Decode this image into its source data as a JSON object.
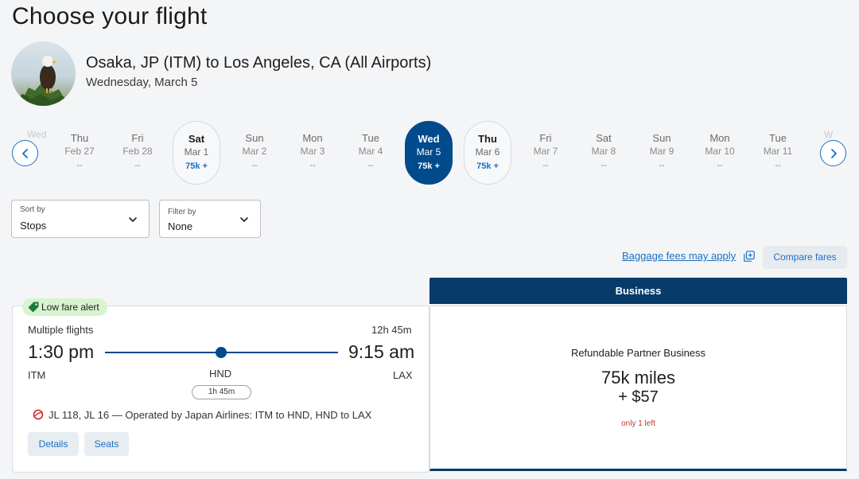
{
  "page": {
    "title": "Choose your flight"
  },
  "trip": {
    "route": "Osaka, JP (ITM) to Los Angeles, CA (All Airports)",
    "date": "Wednesday, March 5"
  },
  "date_strip": {
    "days": [
      {
        "dow": "Thu",
        "date": "Feb 27",
        "price": "--",
        "state": "unavailable"
      },
      {
        "dow": "Fri",
        "date": "Feb 28",
        "price": "--",
        "state": "unavailable"
      },
      {
        "dow": "Sat",
        "date": "Mar 1",
        "price": "75k +",
        "state": "available"
      },
      {
        "dow": "Sun",
        "date": "Mar 2",
        "price": "--",
        "state": "unavailable"
      },
      {
        "dow": "Mon",
        "date": "Mar 3",
        "price": "--",
        "state": "unavailable"
      },
      {
        "dow": "Tue",
        "date": "Mar 4",
        "price": "--",
        "state": "unavailable"
      },
      {
        "dow": "Wed",
        "date": "Mar 5",
        "price": "75k +",
        "state": "selected"
      },
      {
        "dow": "Thu",
        "date": "Mar 6",
        "price": "75k +",
        "state": "available"
      },
      {
        "dow": "Fri",
        "date": "Mar 7",
        "price": "--",
        "state": "unavailable"
      },
      {
        "dow": "Sat",
        "date": "Mar 8",
        "price": "--",
        "state": "unavailable"
      },
      {
        "dow": "Sun",
        "date": "Mar 9",
        "price": "--",
        "state": "unavailable"
      },
      {
        "dow": "Mon",
        "date": "Mar 10",
        "price": "--",
        "state": "unavailable"
      },
      {
        "dow": "Tue",
        "date": "Mar 11",
        "price": "--",
        "state": "unavailable"
      }
    ],
    "prev_icon": "chevron-left-icon",
    "next_icon": "chevron-right-icon"
  },
  "controls": {
    "sort_label": "Sort by",
    "sort_value": "Stops",
    "filter_label": "Filter by",
    "filter_value": "None",
    "baggage_link": "Baggage fees may apply",
    "compare_button": "Compare fares"
  },
  "fare_column": {
    "header": "Business"
  },
  "flight": {
    "badge": "Low fare alert",
    "type": "Multiple flights",
    "duration": "12h 45m",
    "departure_time": "1:30 pm",
    "arrival_time": "9:15 am",
    "origin": "ITM",
    "stop": "HND",
    "destination": "LAX",
    "layover": "1h 45m",
    "operated_by": "JL 118, JL 16 — Operated by Japan Airlines: ITM to HND, HND to LAX",
    "details_button": "Details",
    "seats_button": "Seats"
  },
  "fare": {
    "class": "Refundable Partner Business",
    "miles": "75k miles",
    "cash": "+ $57",
    "availability": "only 1 left"
  },
  "colors": {
    "brand_navy": "#014a8c",
    "header_navy": "#063b6a",
    "link_blue": "#1c6fc0",
    "alert_green": "#d8f3cf",
    "warning_red": "#c0392b"
  }
}
